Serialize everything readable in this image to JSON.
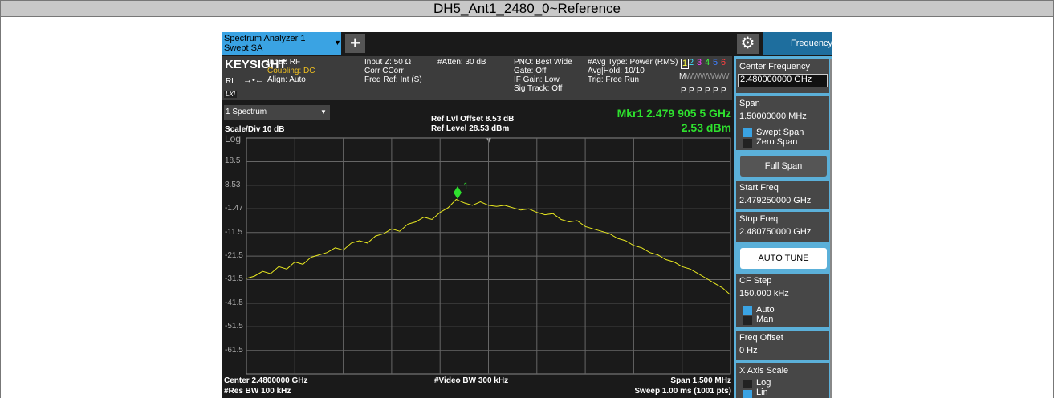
{
  "window_title": "DH5_Ant1_2480_0~Reference",
  "tabs": {
    "app": [
      "Spectrum Analyzer 1",
      "Swept SA"
    ],
    "panel": "Frequency"
  },
  "info": {
    "brand": "KEYSIGHT",
    "rl": "RL",
    "lxi": "LXI",
    "col1": [
      "Input: RF",
      "Coupling: DC",
      "Align: Auto"
    ],
    "col2": [
      "Input Z: 50 Ω",
      "Corr CCorr",
      "Freq Ref: Int (S)"
    ],
    "col3": [
      "#Atten: 30 dB"
    ],
    "col4": [
      "PNO: Best Wide",
      "Gate: Off",
      "IF Gain: Low",
      "Sig Track: Off"
    ],
    "col5": [
      "#Avg Type: Power (RMS)",
      "Avg|Hold: 10/10",
      "Trig: Free Run"
    ],
    "traces": [
      "1",
      "2",
      "3",
      "4",
      "5",
      "6"
    ],
    "trace_mode": "M",
    "trace_types": [
      "W",
      "W",
      "W",
      "W",
      "W",
      "W"
    ],
    "trace_det": [
      "P",
      "P",
      "P",
      "P",
      "P",
      "P"
    ]
  },
  "graph": {
    "window": "1 Spectrum",
    "scale": "Scale/Div 10 dB",
    "log": "Log",
    "ref_offset": "Ref Lvl Offset 8.53 dB",
    "ref_level": "Ref Level 28.53 dBm",
    "marker": "Mkr1  2.479 905 5 GHz",
    "marker_value": "2.53 dBm",
    "marker_label": "1",
    "center": "Center 2.4800000 GHz",
    "rbw": "#Res BW 100 kHz",
    "vbw": "#Video BW 300 kHz",
    "span": "Span 1.500 MHz",
    "sweep": "Sweep 1.00 ms (1001 pts)",
    "ylim": [
      -71.47,
      28.53
    ],
    "yticks": [
      18.5,
      8.53,
      -1.47,
      -11.5,
      -21.5,
      -31.5,
      -41.5,
      -51.5,
      -61.5
    ],
    "trace": [
      -31,
      -30,
      -28,
      -29,
      -26,
      -27,
      -24,
      -25,
      -22,
      -21,
      -20,
      -18,
      -19,
      -16,
      -15,
      -16,
      -13,
      -12,
      -10,
      -11,
      -8,
      -7,
      -5,
      -6,
      -3,
      -1,
      2.5,
      1,
      0,
      1.5,
      0,
      -0.5,
      0,
      -1,
      -2,
      -1.5,
      -3,
      -4,
      -3.5,
      -6,
      -7,
      -6.5,
      -9,
      -10,
      -11,
      -12,
      -14,
      -15,
      -17,
      -18,
      -20,
      -21,
      -23,
      -24,
      -26,
      -27,
      -29,
      -31,
      -33,
      -35,
      -38
    ]
  },
  "panel": {
    "center_label": "Center Frequency",
    "center_value": "2.480000000 GHz",
    "span_label": "Span",
    "span_value": "1.50000000 MHz",
    "swept": "Swept Span",
    "zero": "Zero Span",
    "full": "Full Span",
    "start_label": "Start Freq",
    "start_value": "2.479250000 GHz",
    "stop_label": "Stop Freq",
    "stop_value": "2.480750000 GHz",
    "auto_tune": "AUTO TUNE",
    "cf_label": "CF Step",
    "cf_value": "150.000 kHz",
    "auto": "Auto",
    "man": "Man",
    "offset_label": "Freq Offset",
    "offset_value": "0 Hz",
    "xscale_label": "X Axis Scale",
    "log": "Log",
    "lin": "Lin"
  }
}
